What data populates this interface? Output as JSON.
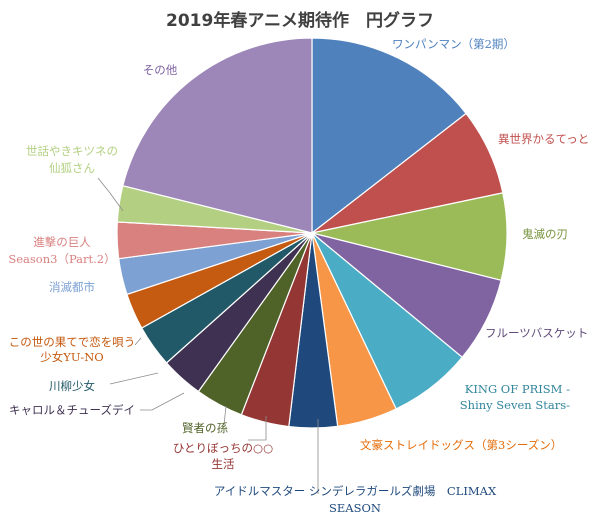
{
  "chart_data": {
    "type": "pie",
    "title": "2019年春アニメ期待作　円グラフ",
    "slices": [
      {
        "name": "ワンパンマン（第2期）",
        "value": 14.5,
        "color": "#4f81bd",
        "label_color": "#4f81bd"
      },
      {
        "name": "異世界かるてっと",
        "value": 7.2,
        "color": "#c0504d",
        "label_color": "#c0504d"
      },
      {
        "name": "鬼滅の刃",
        "value": 7.2,
        "color": "#9bbb59",
        "label_color": "#77933c"
      },
      {
        "name": "フルーツバスケット",
        "value": 7.1,
        "color": "#8064a2",
        "label_color": "#604a7b"
      },
      {
        "name": "KING OF PRISM -Shiny Seven Stars-",
        "value": 6.9,
        "color": "#4bacc6",
        "label_color": "#31859c",
        "lines": [
          "KING OF PRISM -",
          "Shiny Seven Stars-"
        ]
      },
      {
        "name": "文豪ストレイドッグス（第3シーズン）",
        "value": 5.0,
        "color": "#f79646",
        "label_color": "#e46c0a"
      },
      {
        "name": "アイドルマスター シンデレラガールズ劇場　CLIMAX SEASON",
        "value": 4.0,
        "color": "#1f497d",
        "label_color": "#1f497d",
        "lines": [
          "アイドルマスター シンデレラガールズ劇場　CLIMAX",
          "SEASON"
        ]
      },
      {
        "name": "ひとりぼっちの○○生活",
        "value": 4.0,
        "color": "#943634",
        "label_color": "#943634",
        "lines": [
          "ひとりぼっちの○○",
          "生活"
        ]
      },
      {
        "name": "賢者の孫",
        "value": 4.0,
        "color": "#4f6228",
        "label_color": "#4f6228"
      },
      {
        "name": "キャロル＆チューズデイ",
        "value": 3.5,
        "color": "#3f3151",
        "label_color": "#3f3151"
      },
      {
        "name": "川柳少女",
        "value": 3.5,
        "color": "#215968",
        "label_color": "#215968"
      },
      {
        "name": "この世の果てで恋を唄う少女YU-NO",
        "value": 3.0,
        "color": "#c55a11",
        "label_color": "#c55a11",
        "lines": [
          "この世の果てで恋を唄う",
          "少女YU-NO"
        ]
      },
      {
        "name": "消滅都市",
        "value": 3.0,
        "color": "#7ea1d4",
        "label_color": "#7ea1d4"
      },
      {
        "name": "進撃の巨人 Season3（Part.2）",
        "value": 3.0,
        "color": "#d9817f",
        "label_color": "#d9817f",
        "lines": [
          "進撃の巨人",
          "Season3（Part.2）"
        ]
      },
      {
        "name": "世話やきキツネの仙狐さん",
        "value": 3.0,
        "color": "#b3d082",
        "label_color": "#b3d082",
        "lines": [
          "世話やきキツネの",
          "仙狐さん"
        ]
      },
      {
        "name": "その他",
        "value": 21.1,
        "color": "#9d86b8",
        "label_color": "#8064a2"
      }
    ]
  }
}
